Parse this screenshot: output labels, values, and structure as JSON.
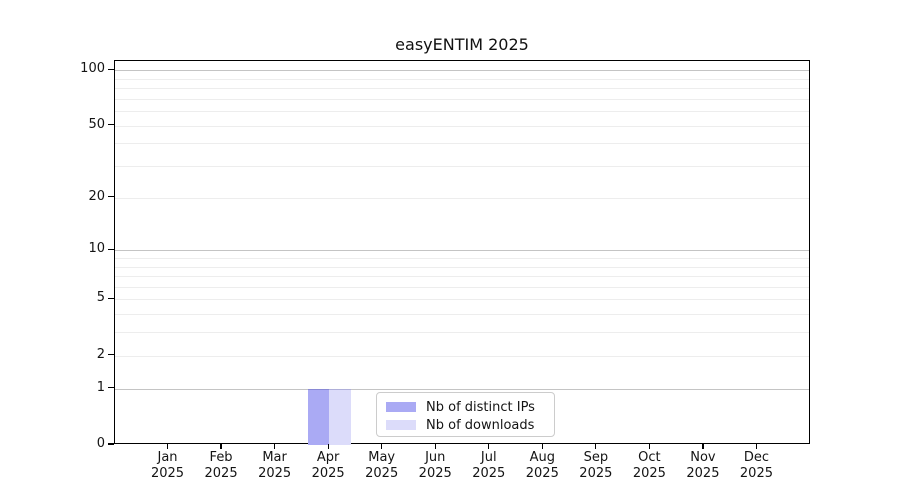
{
  "chart_data": {
    "type": "bar",
    "title": "easyENTIM 2025",
    "categories": [
      "Jan",
      "Feb",
      "Mar",
      "Apr",
      "May",
      "Jun",
      "Jul",
      "Aug",
      "Sep",
      "Oct",
      "Nov",
      "Dec"
    ],
    "x_year": "2025",
    "series": [
      {
        "name": "Nb of distinct IPs",
        "color": "#aaaaf4",
        "values": [
          0,
          0,
          0,
          1,
          0,
          0,
          0,
          0,
          0,
          0,
          0,
          0
        ]
      },
      {
        "name": "Nb of downloads",
        "color": "#dcdcfa",
        "values": [
          0,
          0,
          0,
          1,
          0,
          0,
          0,
          0,
          0,
          0,
          0,
          0
        ]
      }
    ],
    "y_axis": {
      "scale": "log1p",
      "major_ticks": [
        0,
        1,
        2,
        5,
        10,
        20,
        50,
        100
      ],
      "tick_labels": [
        "0",
        "1",
        "2",
        "5",
        "10",
        "20",
        "50",
        "100"
      ],
      "minor_gridlines": [
        3,
        4,
        6,
        7,
        8,
        9,
        30,
        40,
        60,
        70,
        80,
        90
      ],
      "emphasized_gridlines": [
        1,
        10,
        100
      ],
      "range": [
        0,
        115
      ]
    },
    "legend": {
      "position": "lower center",
      "entries": [
        "Nb of distinct IPs",
        "Nb of downloads"
      ]
    },
    "grid": true
  },
  "colors": {
    "background": "#ffffff",
    "spine": "#000000",
    "grid_minor": "#ededed",
    "grid_major": "#c4c4c4",
    "text": "#141414",
    "legend_border": "#cccccc"
  }
}
